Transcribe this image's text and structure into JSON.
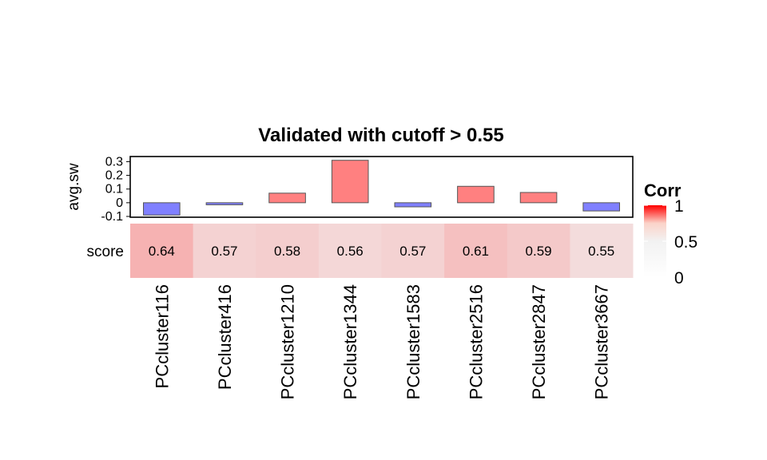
{
  "chart_data": {
    "type": "heatmap",
    "title": "Validated with cutoff > 0.55",
    "categories": [
      "PCcluster116",
      "PCcluster416",
      "PCcluster1210",
      "PCcluster1344",
      "PCcluster1583",
      "PCcluster2516",
      "PCcluster2847",
      "PCcluster3667"
    ],
    "bar_annotation": {
      "type": "bar",
      "ylabel": "avg.sw",
      "yticks": [
        "0.3",
        "0.2",
        "0.1",
        "0",
        "-0.1"
      ],
      "ylim": [
        -0.1,
        0.32
      ],
      "values": [
        -0.09,
        -0.015,
        0.07,
        0.31,
        -0.03,
        0.12,
        0.075,
        -0.06
      ],
      "positive_color": "#FF8080",
      "negative_color": "#8080FF"
    },
    "heatmap": {
      "row_label": "score",
      "values": [
        0.64,
        0.57,
        0.58,
        0.56,
        0.57,
        0.61,
        0.59,
        0.55
      ],
      "labels": [
        "0.64",
        "0.57",
        "0.58",
        "0.56",
        "0.57",
        "0.61",
        "0.59",
        "0.55"
      ]
    },
    "legend": {
      "title": "Corr",
      "ticks": [
        "1",
        "0.5",
        "0"
      ],
      "min": 0,
      "max": 1,
      "low_color": "#FFFFFF",
      "high_color": "#FF0000",
      "placement": "right"
    }
  }
}
